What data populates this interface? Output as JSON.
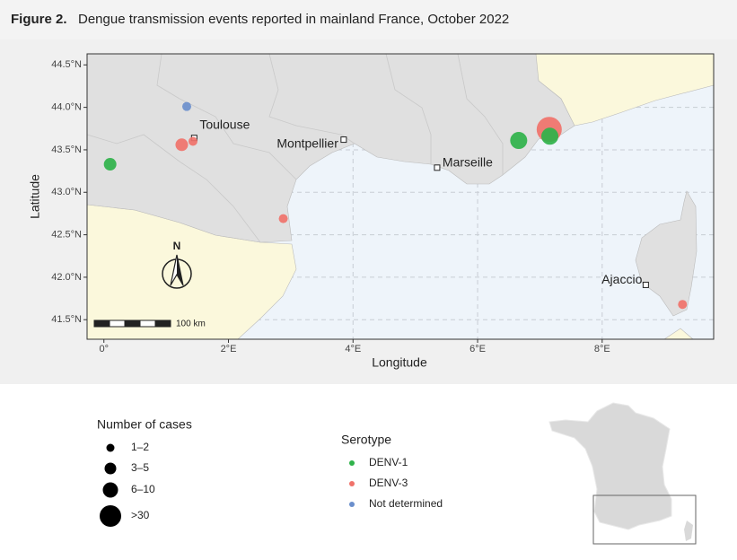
{
  "chart_data": {
    "type": "scatter",
    "title": "Figure 2.",
    "subtitle": "Dengue transmission events reported in mainland France, October 2022",
    "xlabel": "Longitude",
    "ylabel": "Latitude",
    "xlim": [
      -0.27,
      9.79
    ],
    "ylim": [
      41.27,
      44.63
    ],
    "xticks": [
      {
        "value": 0,
        "label": "0°"
      },
      {
        "value": 2,
        "label": "2°E"
      },
      {
        "value": 4,
        "label": "4°E"
      },
      {
        "value": 6,
        "label": "6°E"
      },
      {
        "value": 8,
        "label": "8°E"
      }
    ],
    "yticks": [
      {
        "value": 41.5,
        "label": "41.5°N"
      },
      {
        "value": 42,
        "label": "42.0°N"
      },
      {
        "value": 42.5,
        "label": "42.5°N"
      },
      {
        "value": 43,
        "label": "43.0°N"
      },
      {
        "value": 43.5,
        "label": "43.5°N"
      },
      {
        "value": 44,
        "label": "44.0°N"
      },
      {
        "value": 44.5,
        "label": "44.5°N"
      }
    ],
    "grid": true,
    "size_legend": {
      "title": "Number of cases",
      "labels": [
        "1–2",
        "3–5",
        "6–10",
        ">30"
      ]
    },
    "legend_title": "Serotype",
    "series": [
      {
        "name": "DENV-1",
        "color": "#2fb24a",
        "x": [
          0.1,
          6.66,
          7.16
        ],
        "y": [
          43.33,
          43.61,
          43.66
        ],
        "cases": [
          "3–5",
          "6–10",
          "6–10"
        ]
      },
      {
        "name": "DENV-3",
        "color": "#f0726a",
        "x": [
          1.25,
          1.43,
          2.88,
          7.15,
          9.29
        ],
        "y": [
          43.56,
          43.6,
          42.69,
          43.74,
          41.68
        ],
        "cases": [
          "3–5",
          "1–2",
          "1–2",
          ">30",
          "1–2"
        ]
      },
      {
        "name": "Not determined",
        "color": "#6b8fcc",
        "x": [
          1.33
        ],
        "y": [
          44.01
        ],
        "cases": [
          "1–2"
        ]
      }
    ],
    "places": [
      {
        "name": "Toulouse",
        "x": 1.45,
        "y": 43.64
      },
      {
        "name": "Montpellier",
        "x": 3.85,
        "y": 43.62
      },
      {
        "name": "Marseille",
        "x": 5.35,
        "y": 43.29
      },
      {
        "name": "Ajaccio",
        "x": 8.7,
        "y": 41.91
      }
    ],
    "north_label": "N",
    "scale_label": "100 km"
  }
}
